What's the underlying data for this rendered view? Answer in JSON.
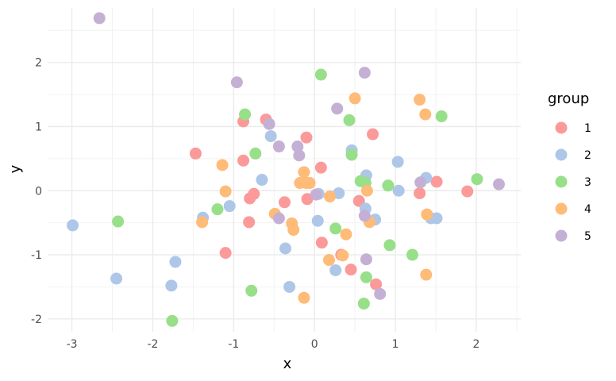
{
  "chart_data": {
    "type": "scatter",
    "title": "",
    "xlabel": "x",
    "ylabel": "y",
    "xlim": [
      -3.3,
      2.55
    ],
    "ylim": [
      -2.2,
      2.85
    ],
    "x_ticks": [
      -3,
      -2,
      -1,
      0,
      1,
      2
    ],
    "y_ticks": [
      -2,
      -1,
      0,
      1,
      2
    ],
    "x_tick_labels": [
      "-3",
      "-2",
      "-1",
      "0",
      "1",
      "2"
    ],
    "y_tick_labels": [
      "-2",
      "-1",
      "0",
      "1",
      "2"
    ],
    "grid": true,
    "legend": {
      "title": "group",
      "position": "right"
    },
    "series": [
      {
        "name": "1",
        "color": "#fb9a99",
        "x": [
          -1.47,
          -0.88,
          -0.6,
          -0.88,
          -0.8,
          -0.75,
          -0.81,
          -1.1,
          -0.37,
          -0.1,
          -0.09,
          0.08,
          0.09,
          0.55,
          0.72,
          0.33,
          0.45,
          0.76,
          1.3,
          1.51,
          1.89
        ],
        "y": [
          0.58,
          1.08,
          1.11,
          0.47,
          -0.12,
          -0.05,
          -0.49,
          -0.97,
          -0.18,
          0.83,
          -0.13,
          0.36,
          -0.81,
          -0.16,
          0.88,
          -1.0,
          -1.23,
          -1.46,
          -0.04,
          0.14,
          -0.01
        ]
      },
      {
        "name": "2",
        "color": "#aec7e8",
        "x": [
          -2.99,
          -2.45,
          -1.77,
          -1.72,
          -1.38,
          -1.05,
          -0.65,
          -0.54,
          -0.36,
          -0.31,
          0.05,
          0.04,
          0.26,
          0.3,
          0.46,
          0.64,
          0.63,
          0.75,
          1.03,
          1.04,
          1.38,
          1.44,
          1.51
        ],
        "y": [
          -0.54,
          -1.37,
          -1.48,
          -1.11,
          -0.42,
          -0.24,
          0.17,
          0.85,
          -0.9,
          -1.5,
          -0.05,
          -0.47,
          -1.24,
          -0.04,
          0.63,
          0.24,
          -0.28,
          -0.45,
          0.45,
          0.0,
          0.2,
          -0.43,
          -0.43
        ]
      },
      {
        "name": "3",
        "color": "#98df8a",
        "x": [
          -2.43,
          -1.76,
          -1.2,
          -0.86,
          -0.78,
          -0.73,
          0.08,
          0.26,
          0.43,
          0.46,
          0.57,
          0.63,
          0.64,
          0.61,
          0.91,
          0.93,
          1.21,
          1.57,
          2.01
        ],
        "y": [
          -0.48,
          -2.03,
          -0.29,
          1.19,
          -1.56,
          0.58,
          1.81,
          -0.59,
          1.1,
          0.56,
          0.15,
          0.12,
          -1.35,
          -1.76,
          0.08,
          -0.85,
          -1.0,
          1.16,
          0.18
        ]
      },
      {
        "name": "4",
        "color": "#ffbb78",
        "x": [
          -1.14,
          -1.1,
          -1.39,
          -0.49,
          -0.28,
          -0.26,
          -0.18,
          -0.13,
          -0.1,
          -0.06,
          -0.13,
          0.19,
          0.18,
          0.35,
          0.39,
          0.5,
          0.65,
          0.68,
          1.3,
          1.37,
          1.39,
          1.38
        ],
        "y": [
          0.4,
          -0.01,
          -0.49,
          -0.36,
          -0.51,
          -0.61,
          0.12,
          0.29,
          0.12,
          0.12,
          -1.67,
          -0.09,
          -1.08,
          -1.01,
          -0.68,
          1.44,
          0.0,
          -0.49,
          1.42,
          1.19,
          -0.37,
          -1.31
        ]
      },
      {
        "name": "5",
        "color": "#c5b0d5",
        "x": [
          -2.66,
          -0.96,
          -0.56,
          -0.44,
          -0.44,
          -0.21,
          -0.19,
          0.02,
          0.28,
          0.62,
          0.62,
          0.64,
          0.81,
          1.31,
          2.28
        ],
        "y": [
          2.69,
          1.69,
          1.04,
          0.69,
          -0.43,
          0.69,
          0.55,
          -0.06,
          1.28,
          1.84,
          -0.39,
          -1.07,
          -1.61,
          0.13,
          0.1
        ]
      }
    ]
  }
}
